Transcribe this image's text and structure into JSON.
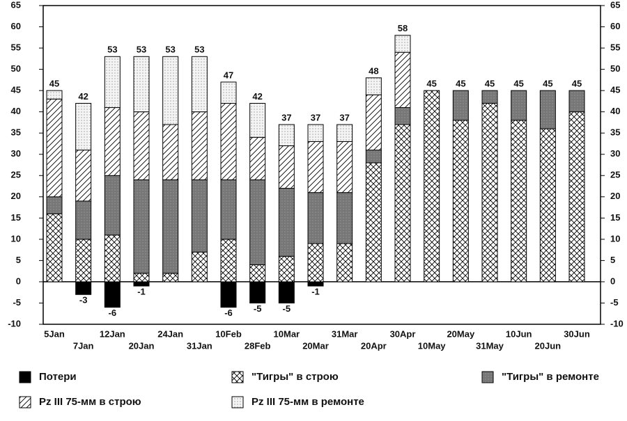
{
  "chart_data": {
    "type": "bar",
    "stacked": true,
    "categories": [
      "5Jan",
      "7Jan",
      "12Jan",
      "20Jan",
      "24Jan",
      "31Jan",
      "10Feb",
      "28Feb",
      "10Mar",
      "20Mar",
      "31Mar",
      "20Apr",
      "30Apr",
      "10May",
      "20May",
      "31May",
      "10Jun",
      "20Jun",
      "30Jun"
    ],
    "series": [
      {
        "name": "Потери",
        "color": "#000000",
        "pattern": "solid",
        "values": [
          null,
          -3,
          -6,
          -1,
          null,
          null,
          -6,
          -5,
          -5,
          -1,
          null,
          null,
          null,
          null,
          null,
          null,
          null,
          null,
          null
        ]
      },
      {
        "name": "\"Тигры\" в строю",
        "color": "#000000",
        "pattern": "crosshatch",
        "values": [
          16,
          10,
          11,
          2,
          2,
          7,
          10,
          4,
          6,
          9,
          9,
          28,
          37,
          45,
          38,
          42,
          38,
          36,
          40
        ]
      },
      {
        "name": "\"Тигры\" в ремонте",
        "color": "#777777",
        "pattern": "solid-gray",
        "values": [
          4,
          9,
          14,
          22,
          22,
          17,
          14,
          20,
          16,
          12,
          12,
          3,
          4,
          0,
          7,
          3,
          7,
          9,
          5
        ]
      },
      {
        "name": "Pz III 75-мм в строю",
        "color": "#000000",
        "pattern": "diagonal",
        "values": [
          23,
          12,
          16,
          16,
          13,
          16,
          18,
          10,
          10,
          12,
          12,
          13,
          13,
          0,
          0,
          0,
          0,
          0,
          0
        ]
      },
      {
        "name": "Pz III 75-мм в ремонте",
        "color": "#000000",
        "pattern": "dots",
        "values": [
          2,
          11,
          12,
          13,
          16,
          13,
          5,
          8,
          5,
          4,
          4,
          4,
          4,
          0,
          0,
          0,
          0,
          0,
          0
        ]
      }
    ],
    "totals": [
      45,
      42,
      53,
      53,
      53,
      53,
      47,
      42,
      37,
      37,
      37,
      48,
      58,
      45,
      45,
      45,
      45,
      45,
      45
    ],
    "ylim": [
      -10,
      65
    ],
    "yticks": [
      -10,
      -5,
      0,
      5,
      10,
      15,
      20,
      25,
      30,
      35,
      40,
      45,
      50,
      55,
      60,
      65
    ],
    "legend": "bottom"
  }
}
